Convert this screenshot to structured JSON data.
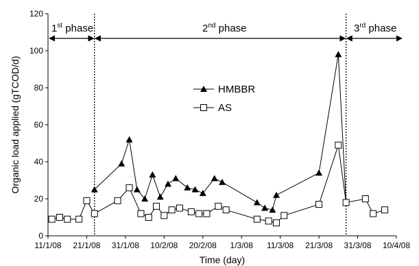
{
  "chart_data": {
    "type": "line",
    "xlabel": "Time (day)",
    "ylabel": "Organic load applied (gTCOD/d)",
    "ylim": [
      0,
      120
    ],
    "yticks": [
      0,
      20,
      40,
      60,
      80,
      100,
      120
    ],
    "xlim": [
      "2008-01-11",
      "2008-04-10"
    ],
    "xticks": [
      {
        "date": "2008-01-11",
        "label": "11/1/08"
      },
      {
        "date": "2008-01-21",
        "label": "21/1/08"
      },
      {
        "date": "2008-01-31",
        "label": "31/1/08"
      },
      {
        "date": "2008-02-10",
        "label": "10/2/08"
      },
      {
        "date": "2008-02-20",
        "label": "20/2/08"
      },
      {
        "date": "2008-03-01",
        "label": "1/3/08"
      },
      {
        "date": "2008-03-11",
        "label": "11/3/08"
      },
      {
        "date": "2008-03-21",
        "label": "21/3/08"
      },
      {
        "date": "2008-03-31",
        "label": "31/3/08"
      },
      {
        "date": "2008-04-10",
        "label": "10/4/08"
      }
    ],
    "phases": [
      {
        "ord": "1",
        "sup": "st",
        "word": "phase"
      },
      {
        "ord": "2",
        "sup": "nd",
        "word": "phase"
      },
      {
        "ord": "3",
        "sup": "rd",
        "word": "phase"
      }
    ],
    "phase_boundaries": [
      "2008-01-23",
      "2008-03-28"
    ],
    "legend_position": "upper-center",
    "series": [
      {
        "name": "HMBBR",
        "marker": "filled-triangle",
        "color": "#000000",
        "x": [
          "2008-01-23",
          "2008-01-30",
          "2008-02-01",
          "2008-02-03",
          "2008-02-05",
          "2008-02-07",
          "2008-02-09",
          "2008-02-11",
          "2008-02-13",
          "2008-02-16",
          "2008-02-18",
          "2008-02-20",
          "2008-02-23",
          "2008-02-25",
          "2008-03-05",
          "2008-03-07",
          "2008-03-09",
          "2008-03-10",
          "2008-03-21",
          "2008-03-26",
          "2008-03-28"
        ],
        "y": [
          25,
          39,
          52,
          25,
          20,
          33,
          21,
          28,
          31,
          26,
          25,
          23,
          31,
          29,
          18,
          15,
          14,
          22,
          34,
          98,
          18
        ]
      },
      {
        "name": "AS",
        "marker": "open-square",
        "color": "#000000",
        "x": [
          "2008-01-12",
          "2008-01-14",
          "2008-01-16",
          "2008-01-19",
          "2008-01-21",
          "2008-01-23",
          "2008-01-29",
          "2008-02-01",
          "2008-02-04",
          "2008-02-06",
          "2008-02-08",
          "2008-02-10",
          "2008-02-12",
          "2008-02-14",
          "2008-02-17",
          "2008-02-19",
          "2008-02-21",
          "2008-02-24",
          "2008-02-26",
          "2008-03-05",
          "2008-03-08",
          "2008-03-10",
          "2008-03-12",
          "2008-03-21",
          "2008-03-26",
          "2008-03-28",
          "2008-04-02",
          "2008-04-04",
          "2008-04-07"
        ],
        "y": [
          9,
          10,
          9,
          9,
          19,
          12,
          19,
          26,
          12,
          10,
          16,
          11,
          14,
          15,
          13,
          12,
          12,
          16,
          14,
          9,
          8,
          7,
          11,
          17,
          49,
          18,
          20,
          12,
          14
        ]
      }
    ]
  }
}
